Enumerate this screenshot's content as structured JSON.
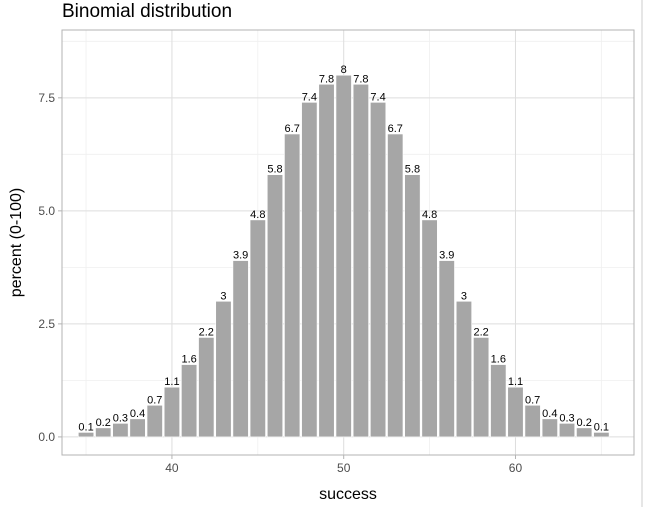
{
  "chart_data": {
    "type": "bar",
    "title": "Binomial distribution",
    "xlabel": "success",
    "ylabel": "percent (0-100)",
    "x": [
      35,
      36,
      37,
      38,
      39,
      40,
      41,
      42,
      43,
      44,
      45,
      46,
      47,
      48,
      49,
      50,
      51,
      52,
      53,
      54,
      55,
      56,
      57,
      58,
      59,
      60,
      61,
      62,
      63,
      64,
      65
    ],
    "values": [
      0.1,
      0.2,
      0.3,
      0.4,
      0.7,
      1.1,
      1.6,
      2.2,
      3,
      3.9,
      4.8,
      5.8,
      6.7,
      7.4,
      7.8,
      8,
      7.8,
      7.4,
      6.7,
      5.8,
      4.8,
      3.9,
      3,
      2.2,
      1.6,
      1.1,
      0.7,
      0.4,
      0.3,
      0.2,
      0.1
    ],
    "xlim": [
      33.6,
      66.9
    ],
    "ylim": [
      -0.4,
      9.0
    ],
    "x_ticks": [
      40,
      50,
      60
    ],
    "x_tick_labels": [
      "40",
      "50",
      "60"
    ],
    "x_minor": [
      35,
      45,
      55,
      65
    ],
    "y_ticks": [
      0,
      2.5,
      5,
      7.5
    ],
    "y_tick_labels": [
      "0.0",
      "2.5",
      "5.0",
      "7.5"
    ],
    "y_minor": [
      1.25,
      3.75,
      6.25,
      8.75
    ],
    "grid": true,
    "legend": "none",
    "bar_color": "#a6a6a6",
    "bar_outline": "#ffffff"
  }
}
